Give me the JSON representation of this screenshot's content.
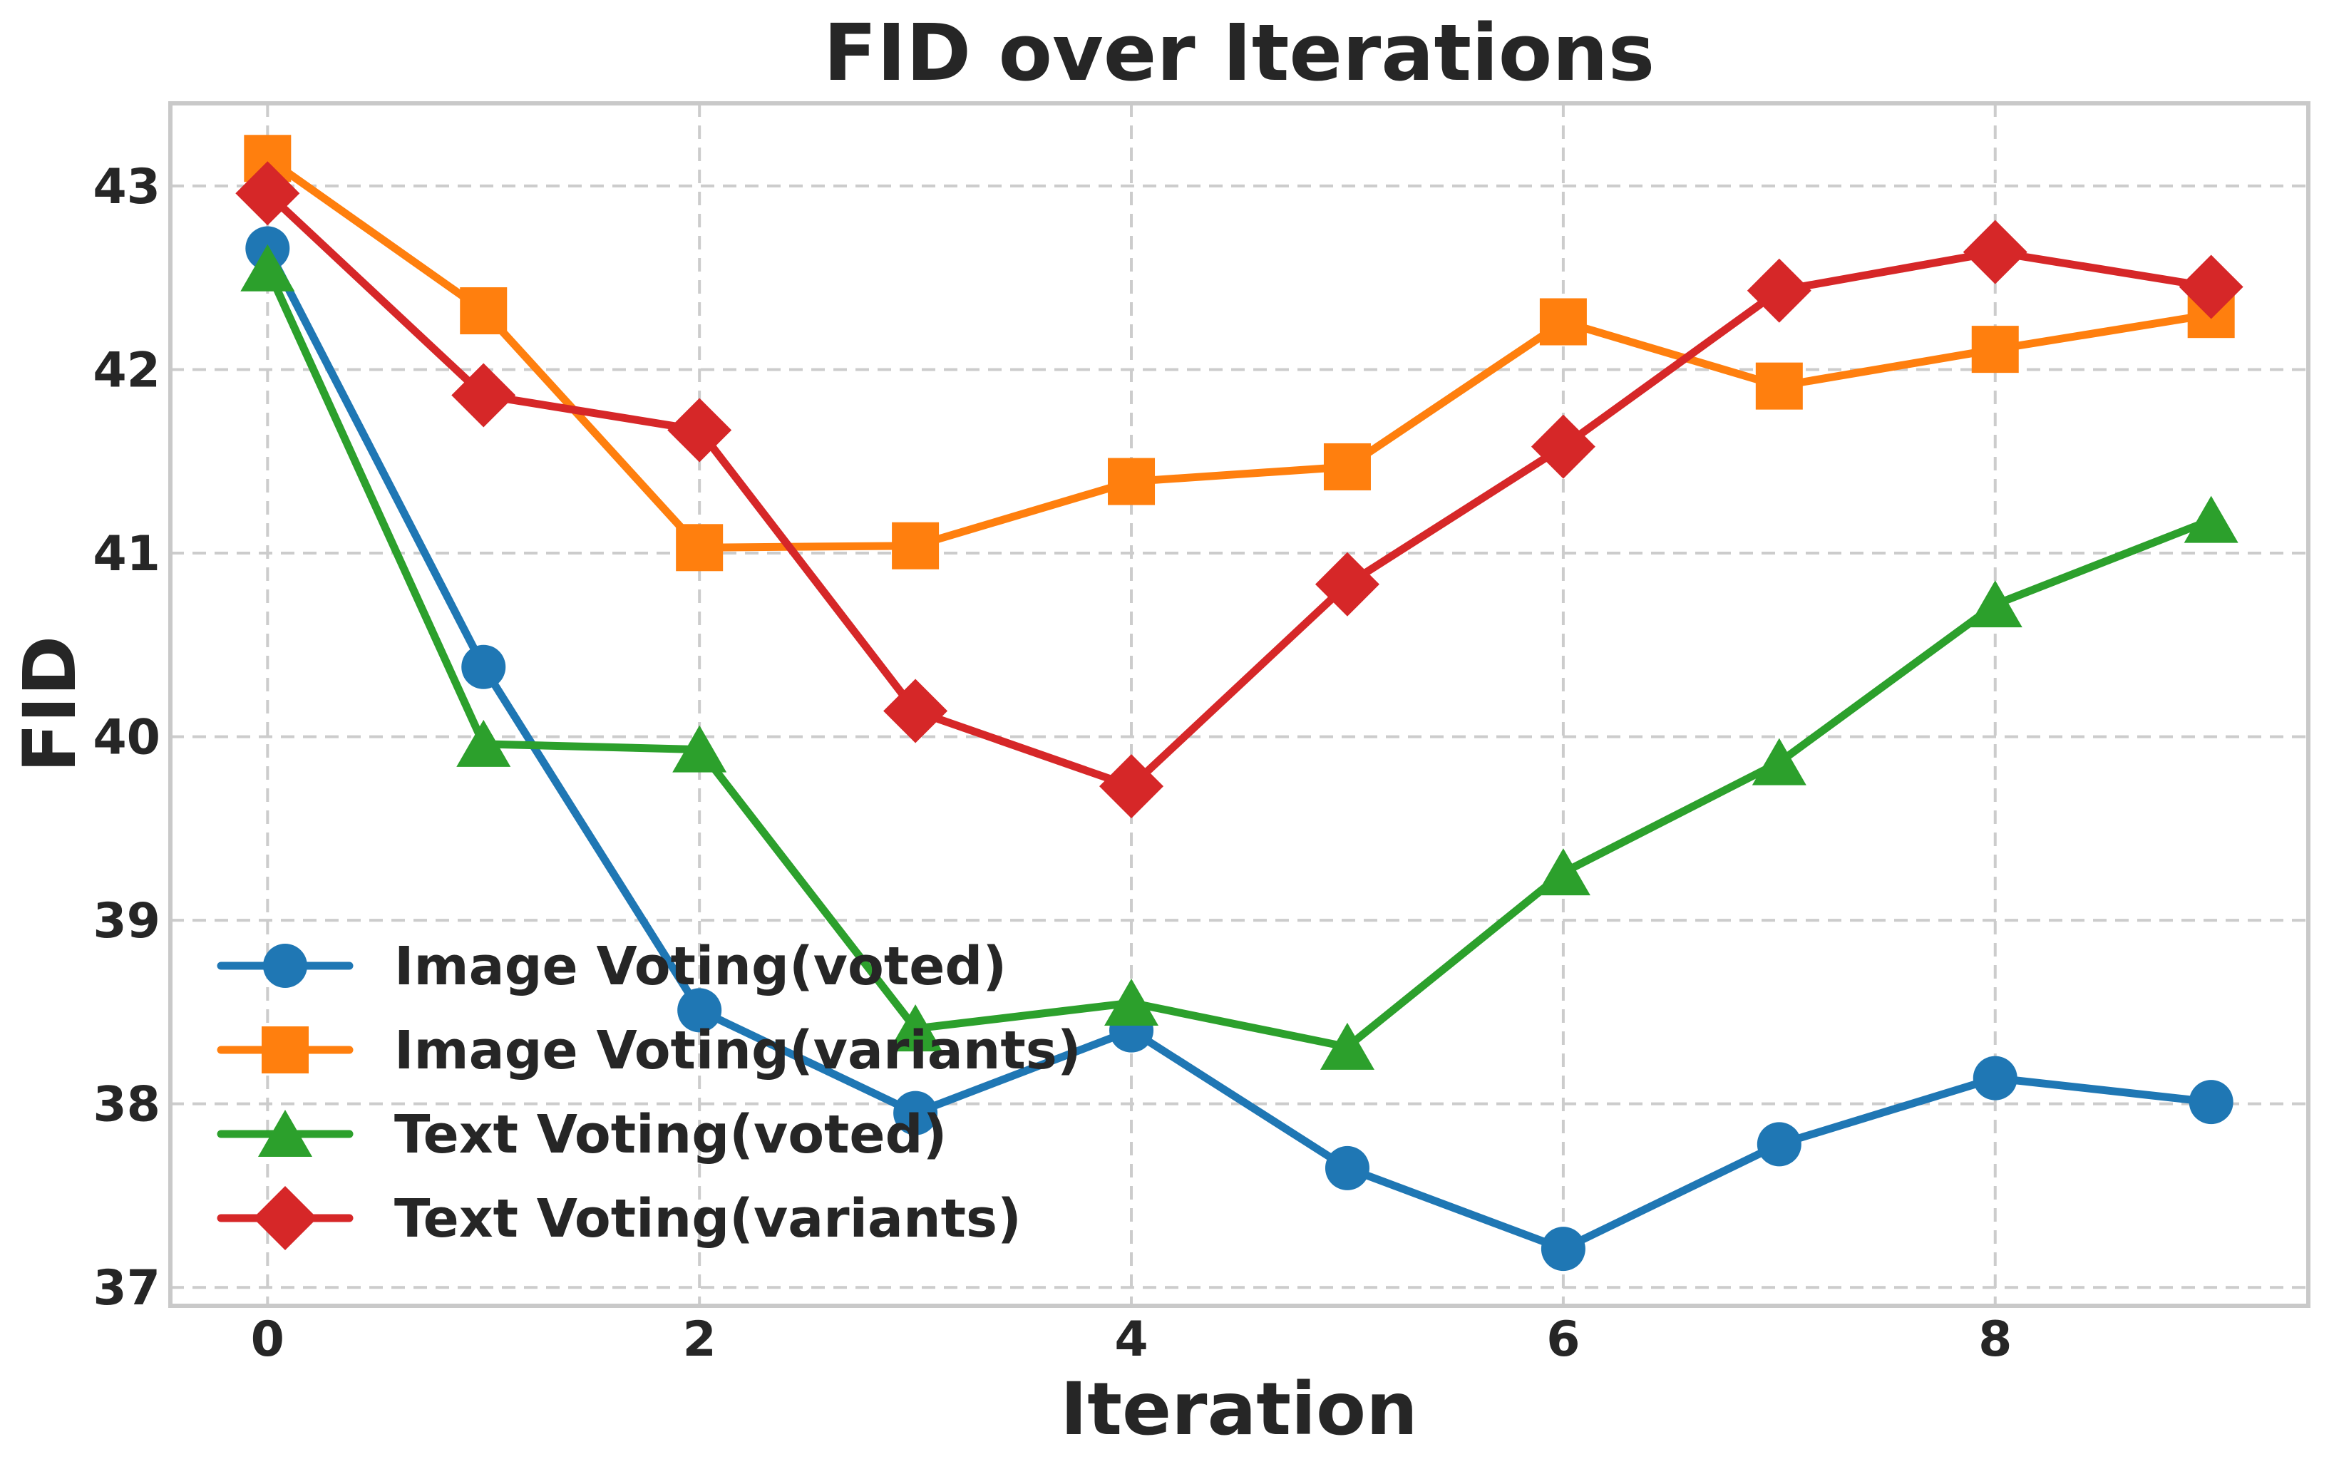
{
  "figure": {
    "title": "FID over Iterations",
    "xlabel": "Iteration",
    "ylabel": "FID"
  },
  "chart_data": {
    "type": "line",
    "title": "FID over Iterations",
    "xlabel": "Iteration",
    "ylabel": "FID",
    "x": [
      0,
      1,
      2,
      3,
      4,
      5,
      6,
      7,
      8,
      9
    ],
    "series": [
      {
        "name": "Image Voting(voted)",
        "color": "#1f77b4",
        "marker": "circle",
        "values": [
          42.66,
          40.38,
          38.51,
          37.95,
          38.4,
          37.65,
          37.21,
          37.78,
          38.14,
          38.01
        ]
      },
      {
        "name": "Image Voting(variants)",
        "color": "#ff7f0e",
        "marker": "square",
        "values": [
          43.15,
          42.32,
          41.03,
          41.04,
          41.39,
          41.47,
          42.26,
          41.91,
          42.11,
          42.3
        ]
      },
      {
        "name": "Text Voting(voted)",
        "color": "#2ca02c",
        "marker": "triangle",
        "values": [
          42.55,
          39.96,
          39.93,
          38.41,
          38.55,
          38.31,
          39.26,
          39.86,
          40.72,
          41.18
        ]
      },
      {
        "name": "Text Voting(variants)",
        "color": "#d62728",
        "marker": "diamond",
        "values": [
          42.96,
          41.86,
          41.67,
          40.14,
          39.73,
          40.83,
          41.58,
          42.43,
          42.64,
          42.45
        ]
      }
    ],
    "xlim": [
      -0.45,
      9.45
    ],
    "ylim": [
      36.9,
      43.45
    ],
    "xticks": [
      0,
      2,
      4,
      6,
      8
    ],
    "yticks": [
      37,
      38,
      39,
      40,
      41,
      42,
      43
    ],
    "grid": true,
    "grid_style": "dashed",
    "grid_color": "#cccccc",
    "spine_color": "#c9c9c9",
    "text_color": "#262626",
    "legend_position": "lower left"
  }
}
